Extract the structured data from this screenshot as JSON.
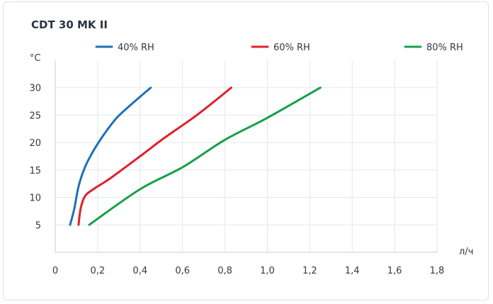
{
  "chart_data": {
    "type": "line",
    "title": "CDT 30 MK II",
    "xlabel": "л/ч",
    "ylabel": "°C",
    "xlim": [
      0,
      1.8
    ],
    "ylim": [
      0,
      35
    ],
    "x_ticks": [
      0,
      0.2,
      0.4,
      0.6,
      0.8,
      1.0,
      1.2,
      1.4,
      1.6,
      1.8
    ],
    "x_tick_labels": [
      "0",
      "0,2",
      "0,4",
      "0,6",
      "0,8",
      "1,0",
      "1,2",
      "1,4",
      "1,6",
      "1,8"
    ],
    "y_ticks": [
      5,
      10,
      15,
      20,
      25,
      30
    ],
    "y_tick_labels": [
      "5",
      "10",
      "15",
      "20",
      "25",
      "30"
    ],
    "grid": "vertical",
    "legend_position": "top",
    "series": [
      {
        "name": "40% RH",
        "color": "#1f6fb8",
        "points": [
          [
            0.07,
            5
          ],
          [
            0.09,
            8
          ],
          [
            0.11,
            12
          ],
          [
            0.14,
            15.5
          ],
          [
            0.18,
            18.5
          ],
          [
            0.23,
            21.5
          ],
          [
            0.29,
            24.5
          ],
          [
            0.36,
            27
          ],
          [
            0.45,
            30
          ]
        ]
      },
      {
        "name": "60% RH",
        "color": "#e0202c",
        "points": [
          [
            0.11,
            5
          ],
          [
            0.12,
            8
          ],
          [
            0.14,
            10.2
          ],
          [
            0.18,
            11.5
          ],
          [
            0.26,
            13.5
          ],
          [
            0.4,
            17.5
          ],
          [
            0.52,
            21
          ],
          [
            0.65,
            24.5
          ],
          [
            0.75,
            27.5
          ],
          [
            0.83,
            30
          ]
        ]
      },
      {
        "name": "80% RH",
        "color": "#16a04a",
        "points": [
          [
            0.16,
            5
          ],
          [
            0.4,
            11.5
          ],
          [
            0.6,
            15.5
          ],
          [
            0.8,
            20.5
          ],
          [
            1.0,
            24.5
          ],
          [
            1.25,
            30
          ]
        ]
      }
    ]
  }
}
